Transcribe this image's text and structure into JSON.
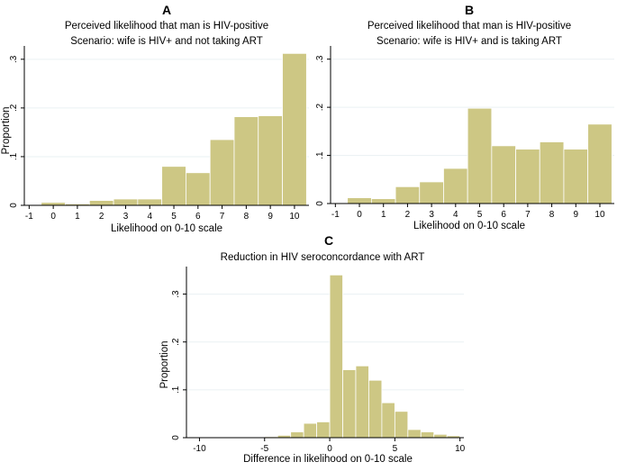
{
  "colors": {
    "bar_fill": "#cdc784",
    "bar_stroke": "#ffffff",
    "axis": "#000000",
    "grid": "#eaf0f3"
  },
  "chart_data": [
    {
      "id": "A",
      "type": "bar",
      "panel_letter": "A",
      "title": "Perceived likelihood that man is HIV-positive",
      "subtitle": "Scenario: wife is HIV+ and not taking ART",
      "xlabel": "Likelihood on 0-10 scale",
      "ylabel": "Proportion",
      "xlim": [
        -1.2,
        10.6
      ],
      "ylim": [
        0,
        0.32
      ],
      "xticks": [
        -1,
        0,
        1,
        2,
        3,
        4,
        5,
        6,
        7,
        8,
        9,
        10
      ],
      "xtick_labels": [
        "-1",
        "0",
        "1",
        "2",
        "3",
        "4",
        "5",
        "6",
        "7",
        "8",
        "9",
        "10"
      ],
      "yticks": [
        0,
        0.1,
        0.2,
        0.3
      ],
      "ytick_labels": [
        "0",
        ".1",
        ".2",
        ".3"
      ],
      "grid": true,
      "bins": [
        {
          "x0": -0.5,
          "x1": 0.5,
          "value": 0.006
        },
        {
          "x0": 0.5,
          "x1": 1.5,
          "value": 0.003
        },
        {
          "x0": 1.5,
          "x1": 2.5,
          "value": 0.01
        },
        {
          "x0": 2.5,
          "x1": 3.5,
          "value": 0.013
        },
        {
          "x0": 3.5,
          "x1": 4.5,
          "value": 0.013
        },
        {
          "x0": 4.5,
          "x1": 5.5,
          "value": 0.08
        },
        {
          "x0": 5.5,
          "x1": 6.5,
          "value": 0.067
        },
        {
          "x0": 6.5,
          "x1": 7.5,
          "value": 0.135
        },
        {
          "x0": 7.5,
          "x1": 8.5,
          "value": 0.182
        },
        {
          "x0": 8.5,
          "x1": 9.5,
          "value": 0.184
        },
        {
          "x0": 9.5,
          "x1": 10.5,
          "value": 0.312
        }
      ]
    },
    {
      "id": "B",
      "type": "bar",
      "panel_letter": "B",
      "title": "Perceived likelihood that man is HIV-positive",
      "subtitle": "Scenario: wife is HIV+ and is taking ART",
      "xlabel": "Likelihood on 0-10 scale",
      "ylabel": "",
      "xlim": [
        -1.2,
        10.6
      ],
      "ylim": [
        0,
        0.32
      ],
      "xticks": [
        -1,
        0,
        1,
        2,
        3,
        4,
        5,
        6,
        7,
        8,
        9,
        10
      ],
      "xtick_labels": [
        "-1",
        "0",
        "1",
        "2",
        "3",
        "4",
        "5",
        "6",
        "7",
        "8",
        "9",
        "10"
      ],
      "yticks": [
        0,
        0.1,
        0.2,
        0.3
      ],
      "ytick_labels": [
        "0",
        ".1",
        ".2",
        ".3"
      ],
      "grid": true,
      "bins": [
        {
          "x0": -0.5,
          "x1": 0.5,
          "value": 0.012
        },
        {
          "x0": 0.5,
          "x1": 1.5,
          "value": 0.01
        },
        {
          "x0": 1.5,
          "x1": 2.5,
          "value": 0.035
        },
        {
          "x0": 2.5,
          "x1": 3.5,
          "value": 0.045
        },
        {
          "x0": 3.5,
          "x1": 4.5,
          "value": 0.073
        },
        {
          "x0": 4.5,
          "x1": 5.5,
          "value": 0.198
        },
        {
          "x0": 5.5,
          "x1": 6.5,
          "value": 0.12
        },
        {
          "x0": 6.5,
          "x1": 7.5,
          "value": 0.113
        },
        {
          "x0": 7.5,
          "x1": 8.5,
          "value": 0.128
        },
        {
          "x0": 8.5,
          "x1": 9.5,
          "value": 0.113
        },
        {
          "x0": 9.5,
          "x1": 10.5,
          "value": 0.165
        }
      ]
    },
    {
      "id": "C",
      "type": "bar",
      "panel_letter": "C",
      "title": "Reduction in HIV seroconcordance with ART",
      "subtitle": "",
      "xlabel": "Difference in likelihood on 0-10 scale",
      "ylabel": "Proportion",
      "xlim": [
        -11,
        10.3
      ],
      "ylim": [
        0,
        0.35
      ],
      "xticks": [
        -10,
        -5,
        0,
        5,
        10
      ],
      "xtick_labels": [
        "-10",
        "-5",
        "0",
        "5",
        "10"
      ],
      "yticks": [
        0,
        0.1,
        0.2,
        0.3
      ],
      "ytick_labels": [
        "0",
        ".1",
        ".2",
        ".3"
      ],
      "grid": true,
      "bins": [
        {
          "x0": -5,
          "x1": -4,
          "value": 0.002
        },
        {
          "x0": -4,
          "x1": -3,
          "value": 0.005
        },
        {
          "x0": -3,
          "x1": -2,
          "value": 0.012
        },
        {
          "x0": -2,
          "x1": -1,
          "value": 0.03
        },
        {
          "x0": -1,
          "x1": 0,
          "value": 0.033
        },
        {
          "x0": 0,
          "x1": 1,
          "value": 0.34
        },
        {
          "x0": 1,
          "x1": 2,
          "value": 0.142
        },
        {
          "x0": 2,
          "x1": 3,
          "value": 0.15
        },
        {
          "x0": 3,
          "x1": 4,
          "value": 0.12
        },
        {
          "x0": 4,
          "x1": 5,
          "value": 0.073
        },
        {
          "x0": 5,
          "x1": 6,
          "value": 0.055
        },
        {
          "x0": 6,
          "x1": 7,
          "value": 0.017
        },
        {
          "x0": 7,
          "x1": 8,
          "value": 0.012
        },
        {
          "x0": 8,
          "x1": 9,
          "value": 0.007
        },
        {
          "x0": 9,
          "x1": 10,
          "value": 0.004
        }
      ]
    }
  ]
}
